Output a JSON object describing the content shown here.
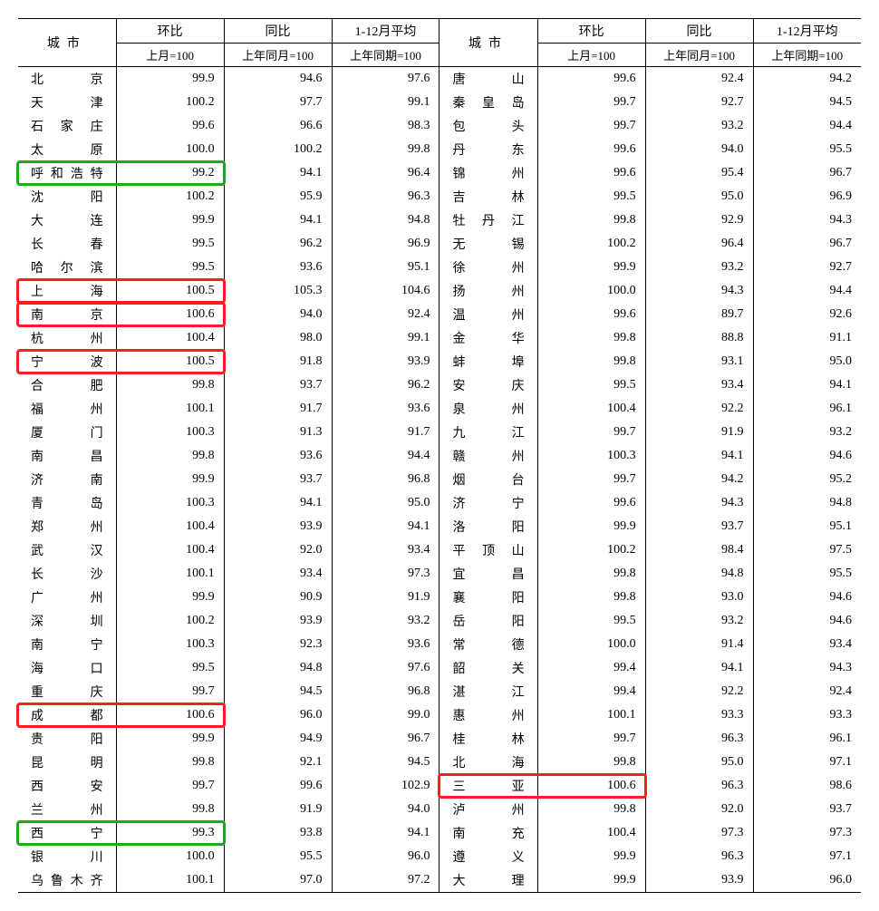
{
  "headers": {
    "city": "城市",
    "group1": "环比",
    "group2": "同比",
    "group3": "1-12月平均",
    "sub1": "上月=100",
    "sub2": "上年同月=100",
    "sub3": "上年同期=100"
  },
  "colors": {
    "red": "#ff1e1e",
    "green": "#1fa81f",
    "background": "#ffffff",
    "text": "#000000",
    "border": "#000000"
  },
  "rowsLeft": [
    {
      "city": "北京",
      "v1": "99.9",
      "v2": "94.6",
      "v3": "97.6"
    },
    {
      "city": "天津",
      "v1": "100.2",
      "v2": "97.7",
      "v3": "99.1"
    },
    {
      "city": "石家庄",
      "v1": "99.6",
      "v2": "96.6",
      "v3": "98.3"
    },
    {
      "city": "太原",
      "v1": "100.0",
      "v2": "100.2",
      "v3": "99.8"
    },
    {
      "city": "呼和浩特",
      "v1": "99.2",
      "v2": "94.1",
      "v3": "96.4"
    },
    {
      "city": "沈阳",
      "v1": "100.2",
      "v2": "95.9",
      "v3": "96.3"
    },
    {
      "city": "大连",
      "v1": "99.9",
      "v2": "94.1",
      "v3": "94.8"
    },
    {
      "city": "长春",
      "v1": "99.5",
      "v2": "96.2",
      "v3": "96.9"
    },
    {
      "city": "哈尔滨",
      "v1": "99.5",
      "v2": "93.6",
      "v3": "95.1"
    },
    {
      "city": "上海",
      "v1": "100.5",
      "v2": "105.3",
      "v3": "104.6"
    },
    {
      "city": "南京",
      "v1": "100.6",
      "v2": "94.0",
      "v3": "92.4"
    },
    {
      "city": "杭州",
      "v1": "100.4",
      "v2": "98.0",
      "v3": "99.1"
    },
    {
      "city": "宁波",
      "v1": "100.5",
      "v2": "91.8",
      "v3": "93.9"
    },
    {
      "city": "合肥",
      "v1": "99.8",
      "v2": "93.7",
      "v3": "96.2"
    },
    {
      "city": "福州",
      "v1": "100.1",
      "v2": "91.7",
      "v3": "93.6"
    },
    {
      "city": "厦门",
      "v1": "100.3",
      "v2": "91.3",
      "v3": "91.7"
    },
    {
      "city": "南昌",
      "v1": "99.8",
      "v2": "93.6",
      "v3": "94.4"
    },
    {
      "city": "济南",
      "v1": "99.9",
      "v2": "93.7",
      "v3": "96.8"
    },
    {
      "city": "青岛",
      "v1": "100.3",
      "v2": "94.1",
      "v3": "95.0"
    },
    {
      "city": "郑州",
      "v1": "100.4",
      "v2": "93.9",
      "v3": "94.1"
    },
    {
      "city": "武汉",
      "v1": "100.4",
      "v2": "92.0",
      "v3": "93.4"
    },
    {
      "city": "长沙",
      "v1": "100.1",
      "v2": "93.4",
      "v3": "97.3"
    },
    {
      "city": "广州",
      "v1": "99.9",
      "v2": "90.9",
      "v3": "91.9"
    },
    {
      "city": "深圳",
      "v1": "100.2",
      "v2": "93.9",
      "v3": "93.2"
    },
    {
      "city": "南宁",
      "v1": "100.3",
      "v2": "92.3",
      "v3": "93.6"
    },
    {
      "city": "海口",
      "v1": "99.5",
      "v2": "94.8",
      "v3": "97.6"
    },
    {
      "city": "重庆",
      "v1": "99.7",
      "v2": "94.5",
      "v3": "96.8"
    },
    {
      "city": "成都",
      "v1": "100.6",
      "v2": "96.0",
      "v3": "99.0"
    },
    {
      "city": "贵阳",
      "v1": "99.9",
      "v2": "94.9",
      "v3": "96.7"
    },
    {
      "city": "昆明",
      "v1": "99.8",
      "v2": "92.1",
      "v3": "94.5"
    },
    {
      "city": "西安",
      "v1": "99.7",
      "v2": "99.6",
      "v3": "102.9"
    },
    {
      "city": "兰州",
      "v1": "99.8",
      "v2": "91.9",
      "v3": "94.0"
    },
    {
      "city": "西宁",
      "v1": "99.3",
      "v2": "93.8",
      "v3": "94.1"
    },
    {
      "city": "银川",
      "v1": "100.0",
      "v2": "95.5",
      "v3": "96.0"
    },
    {
      "city": "乌鲁木齐",
      "v1": "100.1",
      "v2": "97.0",
      "v3": "97.2"
    }
  ],
  "rowsRight": [
    {
      "city": "唐山",
      "v1": "99.6",
      "v2": "92.4",
      "v3": "94.2"
    },
    {
      "city": "秦皇岛",
      "v1": "99.7",
      "v2": "92.7",
      "v3": "94.5"
    },
    {
      "city": "包头",
      "v1": "99.7",
      "v2": "93.2",
      "v3": "94.4"
    },
    {
      "city": "丹东",
      "v1": "99.6",
      "v2": "94.0",
      "v3": "95.5"
    },
    {
      "city": "锦州",
      "v1": "99.6",
      "v2": "95.4",
      "v3": "96.7"
    },
    {
      "city": "吉林",
      "v1": "99.5",
      "v2": "95.0",
      "v3": "96.9"
    },
    {
      "city": "牡丹江",
      "v1": "99.8",
      "v2": "92.9",
      "v3": "94.3"
    },
    {
      "city": "无锡",
      "v1": "100.2",
      "v2": "96.4",
      "v3": "96.7"
    },
    {
      "city": "徐州",
      "v1": "99.9",
      "v2": "93.2",
      "v3": "92.7"
    },
    {
      "city": "扬州",
      "v1": "100.0",
      "v2": "94.3",
      "v3": "94.4"
    },
    {
      "city": "温州",
      "v1": "99.6",
      "v2": "89.7",
      "v3": "92.6"
    },
    {
      "city": "金华",
      "v1": "99.8",
      "v2": "88.8",
      "v3": "91.1"
    },
    {
      "city": "蚌埠",
      "v1": "99.8",
      "v2": "93.1",
      "v3": "95.0"
    },
    {
      "city": "安庆",
      "v1": "99.5",
      "v2": "93.4",
      "v3": "94.1"
    },
    {
      "city": "泉州",
      "v1": "100.4",
      "v2": "92.2",
      "v3": "96.1"
    },
    {
      "city": "九江",
      "v1": "99.7",
      "v2": "91.9",
      "v3": "93.2"
    },
    {
      "city": "赣州",
      "v1": "100.3",
      "v2": "94.1",
      "v3": "94.6"
    },
    {
      "city": "烟台",
      "v1": "99.7",
      "v2": "94.2",
      "v3": "95.2"
    },
    {
      "city": "济宁",
      "v1": "99.6",
      "v2": "94.3",
      "v3": "94.8"
    },
    {
      "city": "洛阳",
      "v1": "99.9",
      "v2": "93.7",
      "v3": "95.1"
    },
    {
      "city": "平顶山",
      "v1": "100.2",
      "v2": "98.4",
      "v3": "97.5"
    },
    {
      "city": "宜昌",
      "v1": "99.8",
      "v2": "94.8",
      "v3": "95.5"
    },
    {
      "city": "襄阳",
      "v1": "99.8",
      "v2": "93.0",
      "v3": "94.6"
    },
    {
      "city": "岳阳",
      "v1": "99.5",
      "v2": "93.2",
      "v3": "94.6"
    },
    {
      "city": "常德",
      "v1": "100.0",
      "v2": "91.4",
      "v3": "93.4"
    },
    {
      "city": "韶关",
      "v1": "99.4",
      "v2": "94.1",
      "v3": "94.3"
    },
    {
      "city": "湛江",
      "v1": "99.4",
      "v2": "92.2",
      "v3": "92.4"
    },
    {
      "city": "惠州",
      "v1": "100.1",
      "v2": "93.3",
      "v3": "93.3"
    },
    {
      "city": "桂林",
      "v1": "99.7",
      "v2": "96.3",
      "v3": "96.1"
    },
    {
      "city": "北海",
      "v1": "99.8",
      "v2": "95.0",
      "v3": "97.1"
    },
    {
      "city": "三亚",
      "v1": "100.6",
      "v2": "96.3",
      "v3": "98.6"
    },
    {
      "city": "泸州",
      "v1": "99.8",
      "v2": "92.0",
      "v3": "93.7"
    },
    {
      "city": "南充",
      "v1": "100.4",
      "v2": "97.3",
      "v3": "97.3"
    },
    {
      "city": "遵义",
      "v1": "99.9",
      "v2": "96.3",
      "v3": "97.1"
    },
    {
      "city": "大理",
      "v1": "99.9",
      "v2": "93.9",
      "v3": "96.0"
    }
  ],
  "highlights": [
    {
      "side": "left",
      "row": 4,
      "span": 2,
      "color": "green"
    },
    {
      "side": "left",
      "row": 9,
      "span": 2,
      "color": "red"
    },
    {
      "side": "left",
      "row": 10,
      "span": 2,
      "color": "red"
    },
    {
      "side": "left",
      "row": 12,
      "span": 2,
      "color": "red"
    },
    {
      "side": "left",
      "row": 27,
      "span": 2,
      "color": "red"
    },
    {
      "side": "left",
      "row": 32,
      "span": 2,
      "color": "green"
    },
    {
      "side": "right",
      "row": 30,
      "span": 2,
      "color": "red"
    }
  ],
  "layout": {
    "tableWidthPx": 930,
    "cityColPx": 100,
    "valColPx": 110,
    "headerRows": 2,
    "rowHeightPx": 26,
    "headerHeightPx": 52
  }
}
